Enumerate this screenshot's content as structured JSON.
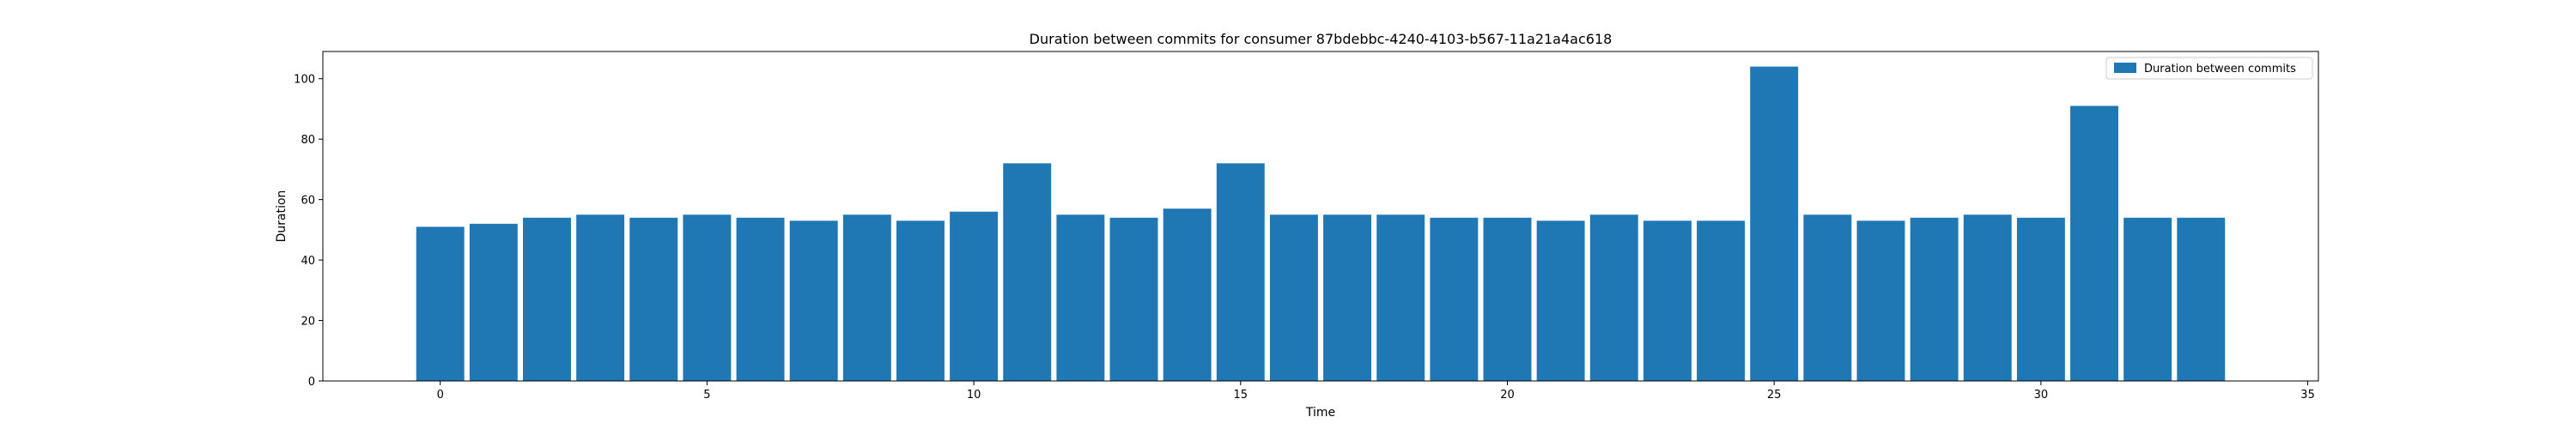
{
  "chart_data": {
    "type": "bar",
    "title": "Duration between commits for consumer 87bdebbc-4240-4103-b567-11a21a4ac618",
    "xlabel": "Time",
    "ylabel": "Duration",
    "xlim": [
      -2.2,
      35.2
    ],
    "ylim": [
      0,
      109
    ],
    "xticks": [
      0,
      5,
      10,
      15,
      20,
      25,
      30,
      35
    ],
    "yticks": [
      0,
      20,
      40,
      60,
      80,
      100
    ],
    "bar_width": 0.9,
    "legend_position": "top-right",
    "grid": false,
    "color": "#1f77b4",
    "series": [
      {
        "name": "Duration between commits",
        "x": [
          0,
          1,
          2,
          3,
          4,
          5,
          6,
          7,
          8,
          9,
          10,
          11,
          12,
          13,
          14,
          15,
          16,
          17,
          18,
          19,
          20,
          21,
          22,
          23,
          24,
          25,
          26,
          27,
          28,
          29,
          30,
          31,
          32,
          33
        ],
        "values": [
          51,
          52,
          54,
          55,
          54,
          55,
          54,
          53,
          55,
          53,
          56,
          72,
          55,
          54,
          57,
          72,
          55,
          55,
          55,
          54,
          54,
          53,
          55,
          53,
          53,
          104,
          55,
          53,
          54,
          55,
          54,
          91,
          54,
          54
        ]
      }
    ]
  }
}
